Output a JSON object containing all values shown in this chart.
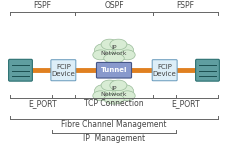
{
  "bg_color": "#ffffff",
  "title_fspf_left": "FSPF",
  "title_ospf": "OSPF",
  "title_fspf_right": "FSPF",
  "label_eport_left": "E_PORT",
  "label_tcp": "TCP Connection",
  "label_eport_right": "E_PORT",
  "label_fc": "Fibre Channel Management",
  "label_ip": "IP  Management",
  "label_tunnel": "Tunnel",
  "label_ip_net_top": "IP\nNetwork",
  "label_ip_net_bot": "IP\nNetwork",
  "label_fcip_left": "FCIP\nDevice",
  "label_fcip_right": "FCIP\nDevice",
  "switch_color": "#5f9ea0",
  "switch_edge": "#2a6f70",
  "switch_line": "#1a4f50",
  "fcip_box_color": "#ddeef8",
  "fcip_box_edge": "#6699bb",
  "tunnel_color": "#8899cc",
  "tunnel_edge": "#445588",
  "cloud_color": "#d8ecd4",
  "cloud_edge": "#99bb99",
  "orange_line": "#e08020",
  "bracket_color": "#666666",
  "text_color": "#444444",
  "font_size": 5.5,
  "fs_small": 5.0
}
